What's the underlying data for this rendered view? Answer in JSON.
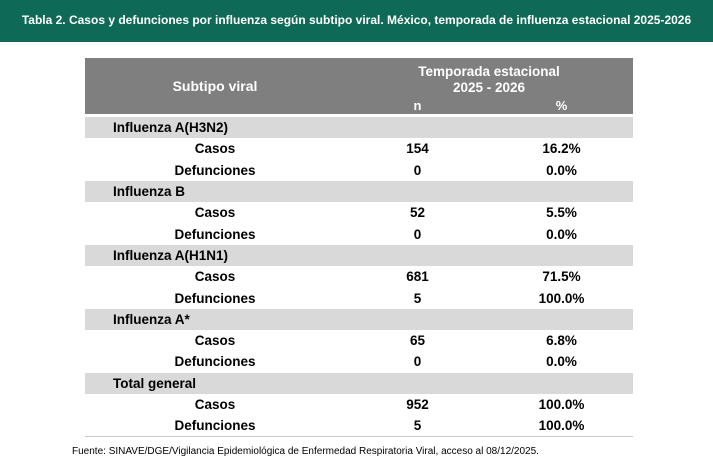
{
  "title_bar": {
    "text": "Tabla 2. Casos y defunciones por influenza según subtipo viral. México, temporada de influenza estacional 2025-2026",
    "bg_color": "#0E6956",
    "text_color": "#FFFFFF"
  },
  "table": {
    "header": {
      "col1": "Subtipo viral",
      "season_line1": "Temporada estacional",
      "season_line2": "2025 - 2026",
      "sub_n": "n",
      "sub_pct": "%",
      "bg_color": "#7F7F7F",
      "text_color": "#FFFFFF"
    },
    "group_row_bg": "#D9D9D9",
    "groups": [
      {
        "label": "Influenza A(H3N2)",
        "rows": [
          {
            "label": "Casos",
            "n": "154",
            "pct": "16.2%"
          },
          {
            "label": "Defunciones",
            "n": "0",
            "pct": "0.0%"
          }
        ]
      },
      {
        "label": "Influenza B",
        "rows": [
          {
            "label": "Casos",
            "n": "52",
            "pct": "5.5%"
          },
          {
            "label": "Defunciones",
            "n": "0",
            "pct": "0.0%"
          }
        ]
      },
      {
        "label": "Influenza A(H1N1)",
        "rows": [
          {
            "label": "Casos",
            "n": "681",
            "pct": "71.5%"
          },
          {
            "label": "Defunciones",
            "n": "5",
            "pct": "100.0%"
          }
        ]
      },
      {
        "label": "Influenza A*",
        "rows": [
          {
            "label": "Casos",
            "n": "65",
            "pct": "6.8%"
          },
          {
            "label": "Defunciones",
            "n": "0",
            "pct": "0.0%"
          }
        ]
      },
      {
        "label": "Total general",
        "rows": [
          {
            "label": "Casos",
            "n": "952",
            "pct": "100.0%"
          },
          {
            "label": "Defunciones",
            "n": "5",
            "pct": "100.0%"
          }
        ]
      }
    ]
  },
  "footer": {
    "source": "Fuente: SINAVE/DGE/Vigilancia Epidemiológica de Enfermedad Respiratoria Viral, acceso al 08/12/2025."
  },
  "chart_data": {
    "type": "table",
    "title": "Tabla 2. Casos y defunciones por influenza según subtipo viral. México, temporada de influenza estacional 2025-2026",
    "column_group": "Temporada estacional 2025 - 2026",
    "columns": [
      "Subtipo viral",
      "n",
      "%"
    ],
    "rows": [
      [
        "Influenza A(H3N2)",
        null,
        null
      ],
      [
        "Casos",
        154,
        "16.2%"
      ],
      [
        "Defunciones",
        0,
        "0.0%"
      ],
      [
        "Influenza B",
        null,
        null
      ],
      [
        "Casos",
        52,
        "5.5%"
      ],
      [
        "Defunciones",
        0,
        "0.0%"
      ],
      [
        "Influenza A(H1N1)",
        null,
        null
      ],
      [
        "Casos",
        681,
        "71.5%"
      ],
      [
        "Defunciones",
        5,
        "100.0%"
      ],
      [
        "Influenza A*",
        null,
        null
      ],
      [
        "Casos",
        65,
        "6.8%"
      ],
      [
        "Defunciones",
        0,
        "0.0%"
      ],
      [
        "Total general",
        null,
        null
      ],
      [
        "Casos",
        952,
        "100.0%"
      ],
      [
        "Defunciones",
        5,
        "100.0%"
      ]
    ],
    "source_note": "Fuente: SINAVE/DGE/Vigilancia Epidemiológica de Enfermedad Respiratoria Viral, acceso al 08/12/2025."
  }
}
